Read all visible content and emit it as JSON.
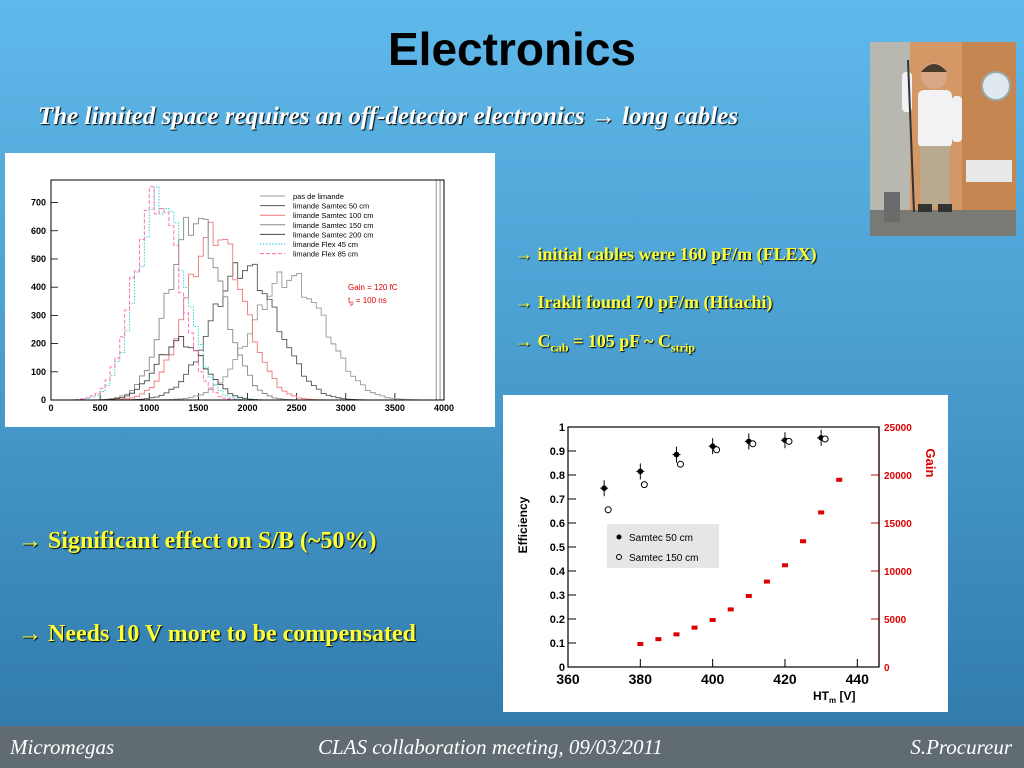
{
  "slide": {
    "title": "Electronics",
    "subtitle": "The limited space requires an off-detector electronics → long cables",
    "bullets": {
      "b1": "→ initial cables were 160 pF/m (FLEX)",
      "b2": "→ Irakli found  70 pF/m (Hitachi)",
      "b3_pre": "→ C",
      "b3_sub1": "cab",
      "b3_mid": " = 105 pF ~ C",
      "b3_sub2": "strip",
      "b4": "→ Significant effect on S/B (~50%)",
      "b5": "→ Needs 10 V more to be compensated"
    }
  },
  "footer": {
    "left": "Micromegas",
    "center": "CLAS collaboration meeting, 09/03/2011",
    "right": "S.Procureur"
  },
  "chart_data": [
    {
      "type": "line",
      "title": "",
      "xlabel": "",
      "ylabel": "",
      "xlim": [
        0,
        4000
      ],
      "ylim": [
        0,
        780
      ],
      "x_ticks": [
        "0",
        "500",
        "1000",
        "1500",
        "2000",
        "2500",
        "3000",
        "3500",
        "4000"
      ],
      "y_ticks": [
        "0",
        "100",
        "200",
        "300",
        "400",
        "500",
        "600",
        "700"
      ],
      "annotations": [
        "Gain = 120 fC",
        "t",
        "p",
        " = 100 ns"
      ],
      "series": [
        {
          "name": "pas de limande",
          "color": "#9a9a9a",
          "style": "solid",
          "peak_x": 2400,
          "peak": 440,
          "width": 360
        },
        {
          "name": "limande Samtec 50 cm",
          "color": "#555555",
          "style": "solid",
          "peak_x": 1950,
          "peak": 470,
          "width": 330
        },
        {
          "name": "limande Samtec 100 cm",
          "color": "#ee7777",
          "style": "solid",
          "peak_x": 1650,
          "peak": 590,
          "width": 290
        },
        {
          "name": "limande Samtec 150 cm",
          "color": "#888888",
          "style": "solid",
          "peak_x": 1450,
          "peak": 640,
          "width": 270
        },
        {
          "name": "limande Samtec 200 cm",
          "color": "#444444",
          "style": "solid",
          "peak_x": 1300,
          "peak": 210,
          "width": 240
        },
        {
          "name": "limande Flex 45 cm",
          "color": "#22cccc",
          "style": "dotted",
          "peak_x": 1100,
          "peak": 720,
          "width": 240
        },
        {
          "name": "limande Flex 85 cm",
          "color": "#ff66aa",
          "style": "dashed",
          "peak_x": 1050,
          "peak": 730,
          "width": 230
        }
      ]
    },
    {
      "type": "scatter",
      "title": "",
      "xlabel": "HT",
      "xlabel_sub": "m",
      "xlabel_unit": " [V]",
      "ylabel": "Efficiency",
      "y2label": "Gain",
      "xlim": [
        360,
        446
      ],
      "ylim": [
        0,
        1
      ],
      "y2lim": [
        0,
        25000
      ],
      "x_ticks": [
        "360",
        "380",
        "400",
        "420",
        "440"
      ],
      "y_ticks": [
        "0",
        "0.1",
        "0.2",
        "0.3",
        "0.4",
        "0.5",
        "0.6",
        "0.7",
        "0.8",
        "0.9",
        "1"
      ],
      "y2_ticks": [
        "0",
        "5000",
        "10000",
        "15000",
        "20000",
        "25000"
      ],
      "series": [
        {
          "name": "Samtec 50 cm",
          "marker": "filled",
          "x": [
            370,
            380,
            390,
            400,
            410,
            420,
            430
          ],
          "y": [
            0.745,
            0.815,
            0.885,
            0.92,
            0.94,
            0.945,
            0.955
          ]
        },
        {
          "name": "Samtec 150 cm",
          "marker": "open",
          "x": [
            370,
            380,
            390,
            400,
            410,
            420,
            430
          ],
          "y": [
            0.655,
            0.76,
            0.845,
            0.905,
            0.93,
            0.94,
            0.95
          ]
        },
        {
          "name": "Gain",
          "marker": "red",
          "x": [
            380,
            385,
            390,
            395,
            400,
            405,
            410,
            415,
            420,
            425,
            430,
            435
          ],
          "y": [
            2400,
            2900,
            3400,
            4100,
            4900,
            6000,
            7400,
            8900,
            10600,
            13100,
            16100,
            19500
          ]
        }
      ]
    }
  ]
}
